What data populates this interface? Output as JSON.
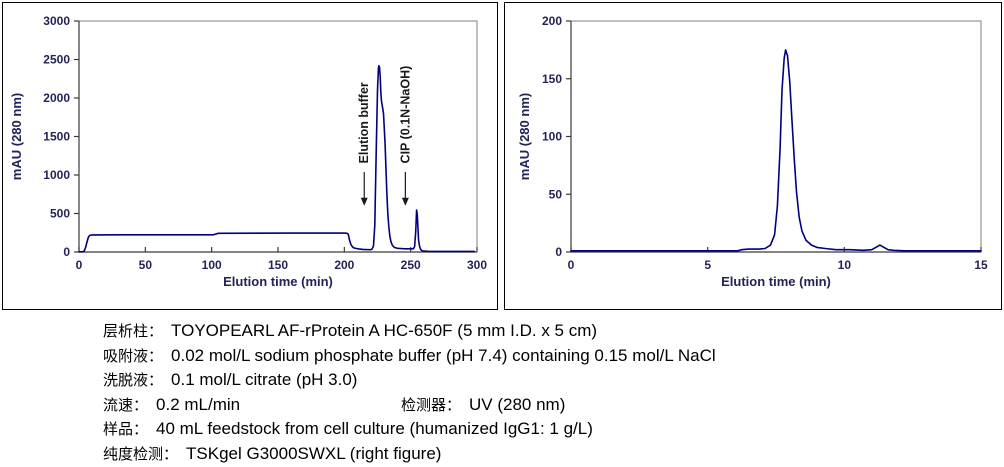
{
  "colors": {
    "line": "#000080",
    "plot_border": "#808080",
    "axis": "#3a3a3a",
    "axis_text": "#23235a",
    "annotation_text": "#1a1a1a",
    "panel_border": "#000000",
    "background": "#ffffff"
  },
  "chart_data": [
    {
      "type": "line",
      "name": "affinity-chromatogram",
      "xlabel": "Elution time (min)",
      "ylabel": "mAU (280 nm)",
      "xlim": [
        0,
        300
      ],
      "ylim": [
        0,
        3000
      ],
      "xticks": [
        0,
        50,
        100,
        150,
        200,
        250,
        300
      ],
      "yticks": [
        0,
        500,
        1000,
        1500,
        2000,
        2500,
        3000
      ],
      "grid": false,
      "legend": "none",
      "line_color": "#000080",
      "series": [
        {
          "name": "UV 280 nm",
          "points": [
            [
              0,
              2
            ],
            [
              3,
              2
            ],
            [
              4,
              15
            ],
            [
              5,
              60
            ],
            [
              6,
              130
            ],
            [
              7,
              190
            ],
            [
              8,
              215
            ],
            [
              10,
              222
            ],
            [
              30,
              223
            ],
            [
              60,
              223
            ],
            [
              90,
              224
            ],
            [
              101,
              224
            ],
            [
              103,
              232
            ],
            [
              105,
              243
            ],
            [
              130,
              244
            ],
            [
              160,
              245
            ],
            [
              190,
              246
            ],
            [
              200,
              246
            ],
            [
              202,
              243
            ],
            [
              203,
              230
            ],
            [
              204,
              150
            ],
            [
              205,
              95
            ],
            [
              206,
              70
            ],
            [
              207,
              55
            ],
            [
              209,
              45
            ],
            [
              211,
              40
            ],
            [
              214,
              34
            ],
            [
              217,
              31
            ],
            [
              220,
              30
            ],
            [
              221,
              40
            ],
            [
              222,
              80
            ],
            [
              223,
              350
            ],
            [
              224,
              1300
            ],
            [
              225,
              2100
            ],
            [
              225.7,
              2380
            ],
            [
              226,
              2420
            ],
            [
              226.5,
              2400
            ],
            [
              227,
              2280
            ],
            [
              227.5,
              2080
            ],
            [
              228,
              1960
            ],
            [
              228.7,
              1890
            ],
            [
              229.5,
              1800
            ],
            [
              230,
              1650
            ],
            [
              230.7,
              1400
            ],
            [
              231.3,
              1100
            ],
            [
              232,
              780
            ],
            [
              232.8,
              500
            ],
            [
              233.5,
              330
            ],
            [
              234.3,
              210
            ],
            [
              235,
              140
            ],
            [
              236,
              95
            ],
            [
              237,
              70
            ],
            [
              238,
              58
            ],
            [
              240,
              48
            ],
            [
              243,
              44
            ],
            [
              246,
              42
            ],
            [
              250,
              41
            ],
            [
              252,
              42
            ],
            [
              253,
              70
            ],
            [
              253.8,
              260
            ],
            [
              254.5,
              545
            ],
            [
              255,
              480
            ],
            [
              255.5,
              300
            ],
            [
              256,
              150
            ],
            [
              256.7,
              70
            ],
            [
              257.5,
              35
            ],
            [
              258.5,
              18
            ],
            [
              260,
              12
            ],
            [
              263,
              9
            ],
            [
              268,
              8
            ],
            [
              275,
              8
            ],
            [
              285,
              8
            ],
            [
              295,
              8
            ],
            [
              298,
              8
            ]
          ]
        }
      ],
      "annotations": [
        {
          "text": "Elution buffer",
          "x": 215,
          "text_base_y": 1150,
          "arrow_top_y": 1040,
          "arrow_tip_y": 600
        },
        {
          "text": "CIP (0.1N-NaOH)",
          "x": 246,
          "text_base_y": 1150,
          "arrow_top_y": 1040,
          "arrow_tip_y": 600
        }
      ]
    },
    {
      "type": "line",
      "name": "sec-purity-chromatogram",
      "xlabel": "Elution time (min)",
      "ylabel": "mAU (280 nm)",
      "xlim": [
        0,
        15
      ],
      "ylim": [
        0,
        200
      ],
      "xticks": [
        0,
        5,
        10,
        15
      ],
      "yticks": [
        0,
        50,
        100,
        150,
        200
      ],
      "grid": false,
      "legend": "none",
      "line_color": "#000080",
      "series": [
        {
          "name": "UV 280 nm",
          "points": [
            [
              0,
              1
            ],
            [
              2,
              1
            ],
            [
              4,
              1
            ],
            [
              5.5,
              1
            ],
            [
              6.1,
              1
            ],
            [
              6.25,
              2
            ],
            [
              6.5,
              2.5
            ],
            [
              6.9,
              2.5
            ],
            [
              7.1,
              3
            ],
            [
              7.3,
              6
            ],
            [
              7.45,
              15
            ],
            [
              7.55,
              40
            ],
            [
              7.65,
              90
            ],
            [
              7.72,
              140
            ],
            [
              7.8,
              168
            ],
            [
              7.85,
              175
            ],
            [
              7.92,
              170
            ],
            [
              8.0,
              148
            ],
            [
              8.08,
              115
            ],
            [
              8.17,
              80
            ],
            [
              8.25,
              52
            ],
            [
              8.35,
              30
            ],
            [
              8.45,
              18
            ],
            [
              8.6,
              10
            ],
            [
              8.8,
              6
            ],
            [
              9.0,
              4
            ],
            [
              9.3,
              3
            ],
            [
              9.7,
              2
            ],
            [
              10.2,
              2
            ],
            [
              10.7,
              1.5
            ],
            [
              11.0,
              2
            ],
            [
              11.15,
              4
            ],
            [
              11.3,
              6
            ],
            [
              11.45,
              4
            ],
            [
              11.6,
              2
            ],
            [
              11.8,
              1.5
            ],
            [
              12.2,
              1
            ],
            [
              13,
              1
            ],
            [
              14,
              1
            ],
            [
              15,
              1
            ]
          ]
        }
      ],
      "annotations": []
    }
  ],
  "notes": {
    "rows": [
      {
        "segments": [
          {
            "label": "层析柱：",
            "value": "TOYOPEARL AF-rProtein A HC-650F (5 mm I.D. x 5 cm)"
          }
        ]
      },
      {
        "segments": [
          {
            "label": "吸附液：",
            "value": "0.02 mol/L sodium phosphate buffer (pH 7.4) containing 0.15 mol/L NaCl"
          }
        ]
      },
      {
        "segments": [
          {
            "label": "洗脱液：",
            "value": "0.1 mol/L citrate (pH 3.0)"
          }
        ]
      },
      {
        "segments": [
          {
            "label": "流速：",
            "value": "0.2 mL/min"
          },
          {
            "label": "检测器：",
            "value": "UV (280 nm)"
          }
        ]
      },
      {
        "segments": [
          {
            "label": "样品：",
            "value": "40 mL feedstock from cell culture (humanized IgG1: 1 g/L)"
          }
        ]
      },
      {
        "segments": [
          {
            "label": "纯度检测：",
            "value": "TSKgel G3000SWXL (right figure)"
          }
        ]
      }
    ]
  }
}
